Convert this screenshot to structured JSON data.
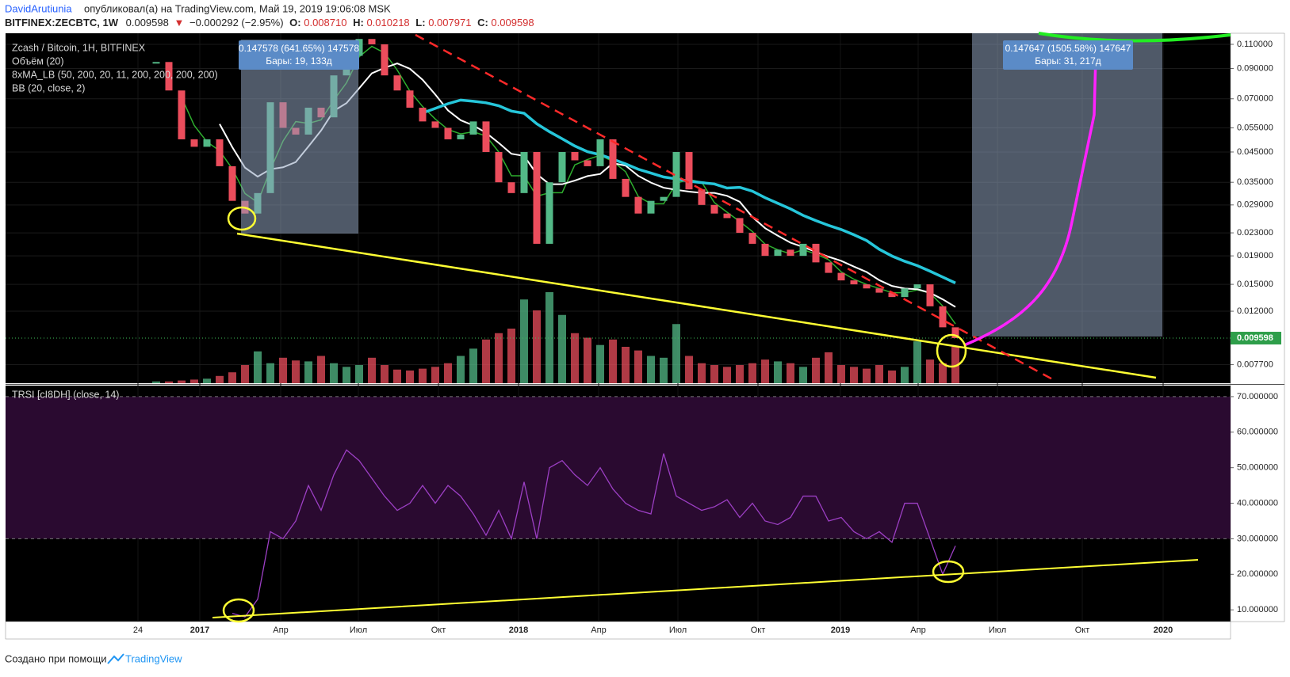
{
  "header": {
    "author": "DavidArutiunia",
    "published": "опубликовал(а) на TradingView.com, Май 19, 2019 19:06:08 MSK",
    "symbol": "BITFINEX:ZECBTC, 1W",
    "last": "0.009598",
    "arrow": "▼",
    "change": "−0.000292 (−2.95%)",
    "o_label": "O:",
    "o": "0.008710",
    "h_label": "H:",
    "h": "0.010218",
    "l_label": "L:",
    "l": "0.007971",
    "c_label": "C:",
    "c": "0.009598"
  },
  "legend": [
    "Zcash / Bitcoin, 1H, BITFINEX",
    "Объём (20)",
    "8xMA_LB (50, 200, 20, 11, 200, 200, 200, 200)",
    "BB (20, close, 2)"
  ],
  "annotations": [
    {
      "line1": "0.147578 (641.65%) 147578",
      "line2": "Бары: 19, 133д"
    },
    {
      "line1": "0.147647 (1505.58%) 147647",
      "line2": "Бары: 31, 217д"
    }
  ],
  "time_axis": {
    "labels": [
      "24",
      "2017",
      "Апр",
      "Июл",
      "Окт",
      "2018",
      "Апр",
      "Июл",
      "Окт",
      "2019",
      "Апр",
      "Июл",
      "Окт",
      "2020"
    ]
  },
  "footer": {
    "text": "Создано при помощи",
    "brand": "TradingView"
  },
  "chart_data": [
    {
      "type": "candlestick",
      "log": true,
      "up_color": "#53b987",
      "down_color": "#eb4d5c",
      "values": [
        0.095,
        0.075,
        0.05,
        0.047,
        0.05,
        0.04,
        0.03,
        0.027,
        0.032,
        0.068,
        0.055,
        0.052,
        0.065,
        0.06,
        0.085,
        0.1,
        0.115,
        0.11,
        0.085,
        0.075,
        0.065,
        0.058,
        0.055,
        0.05,
        0.052,
        0.058,
        0.045,
        0.035,
        0.032,
        0.045,
        0.021,
        0.035,
        0.045,
        0.042,
        0.04,
        0.05,
        0.036,
        0.031,
        0.027,
        0.03,
        0.031,
        0.045,
        0.033,
        0.029,
        0.027,
        0.026,
        0.023,
        0.021,
        0.019,
        0.02,
        0.019,
        0.021,
        0.018,
        0.0165,
        0.0155,
        0.015,
        0.0145,
        0.014,
        0.0135,
        0.0145,
        0.015,
        0.0125,
        0.0105,
        0.009598
      ],
      "volume": [
        2,
        2,
        3,
        4,
        5,
        8,
        12,
        20,
        35,
        22,
        28,
        25,
        24,
        30,
        22,
        18,
        20,
        28,
        20,
        15,
        14,
        16,
        18,
        22,
        30,
        38,
        48,
        55,
        60,
        92,
        80,
        100,
        75,
        55,
        50,
        42,
        48,
        40,
        36,
        30,
        28,
        65,
        30,
        22,
        20,
        18,
        20,
        22,
        26,
        24,
        22,
        18,
        28,
        34,
        20,
        18,
        16,
        20,
        14,
        18,
        46,
        26,
        22,
        40
      ],
      "last_price": {
        "value": 0.009598,
        "label": "0.009598"
      },
      "ylim": [
        0.0066,
        0.1206
      ],
      "yticks": [
        {
          "value": 0.11,
          "label": "0.110000"
        },
        {
          "value": 0.09,
          "label": "0.090000"
        },
        {
          "value": 0.07,
          "label": "0.070000"
        },
        {
          "value": 0.055,
          "label": "0.055000"
        },
        {
          "value": 0.045,
          "label": "0.045000"
        },
        {
          "value": 0.035,
          "label": "0.035000"
        },
        {
          "value": 0.029,
          "label": "0.029000"
        },
        {
          "value": 0.023,
          "label": "0.023000"
        },
        {
          "value": 0.019,
          "label": "0.019000"
        },
        {
          "value": 0.015,
          "label": "0.015000"
        },
        {
          "value": 0.012,
          "label": "0.012000"
        },
        {
          "value": 0.0077,
          "label": "0.007700"
        }
      ]
    },
    {
      "type": "line",
      "title": "TRSI [cI8DH] (close, 14)",
      "color": "#9c3fc4",
      "values": [
        null,
        null,
        null,
        null,
        null,
        null,
        9,
        8,
        13,
        32,
        30,
        35,
        45,
        38,
        48,
        55,
        52,
        47,
        42,
        38,
        40,
        45,
        40,
        45,
        42,
        37,
        31,
        38,
        30,
        46,
        30,
        50,
        52,
        48,
        45,
        50,
        44,
        40,
        38,
        37,
        54,
        42,
        40,
        38,
        39,
        41,
        36,
        40,
        35,
        34,
        36,
        42,
        42,
        35,
        36,
        32,
        30,
        32,
        29,
        40,
        40,
        30,
        20,
        28
      ],
      "band": [
        30,
        70
      ],
      "ylim": [
        6.7,
        73.1
      ],
      "yticks": [
        {
          "value": 70,
          "label": "70.000000"
        },
        {
          "value": 60,
          "label": "60.000000"
        },
        {
          "value": 50,
          "label": "50.000000"
        },
        {
          "value": 40,
          "label": "40.000000"
        },
        {
          "value": 30,
          "label": "30.000000"
        },
        {
          "value": 20,
          "label": "20.000000"
        },
        {
          "value": 10,
          "label": "10.000000"
        }
      ]
    }
  ]
}
